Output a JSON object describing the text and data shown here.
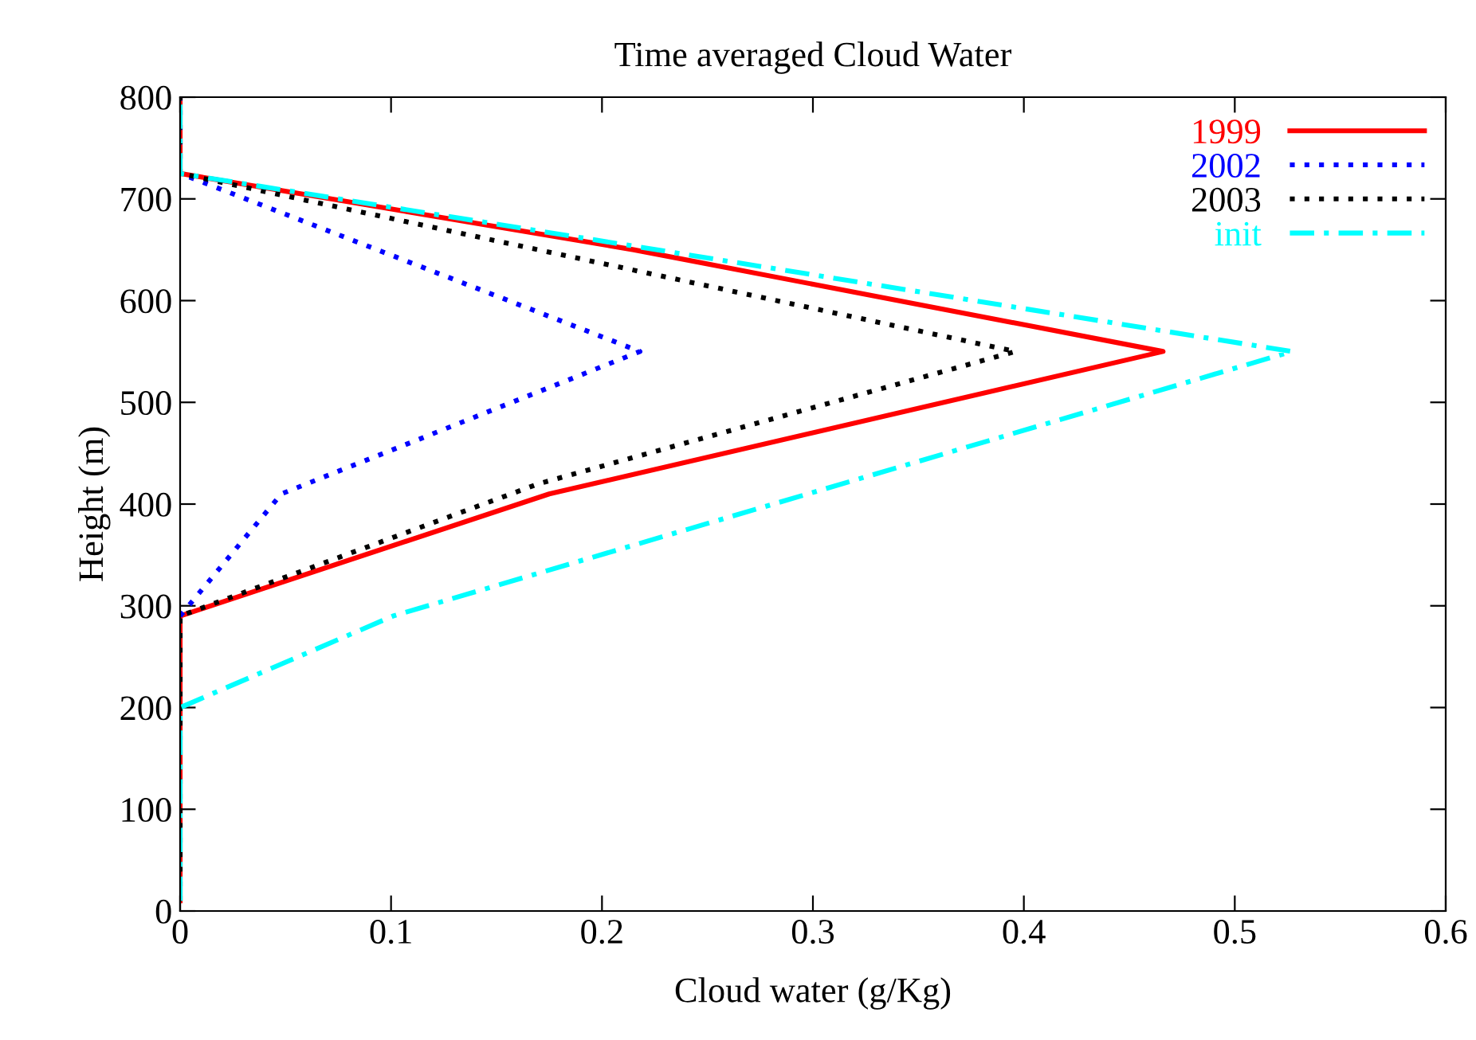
{
  "chart_data": {
    "type": "line",
    "title": "Time averaged Cloud Water",
    "xlabel": "Cloud water (g/Kg)",
    "ylabel": "Height (m)",
    "xlim": [
      0,
      0.6
    ],
    "xticks": [
      0,
      0.1,
      0.2,
      0.3,
      0.4,
      0.5,
      0.6
    ],
    "ylim": [
      0,
      800
    ],
    "yticks": [
      0,
      100,
      200,
      300,
      400,
      500,
      600,
      700,
      800
    ],
    "grid": false,
    "legend": "top right",
    "marker": "none",
    "series": [
      {
        "name": "1999",
        "color": "#ff0000",
        "line_style": "solid",
        "x": [
          0,
          0,
          0.175,
          0.466,
          0.215,
          0,
          0
        ],
        "values": [
          10,
          290,
          410,
          550,
          650,
          725,
          800
        ]
      },
      {
        "name": "2002",
        "color": "#0000ff",
        "line_style": "dotted",
        "x": [
          0,
          0.048,
          0.218,
          0,
          0
        ],
        "values": [
          290,
          410,
          550,
          725,
          800
        ]
      },
      {
        "name": "2003",
        "color": "#000000",
        "line_style": "dotted",
        "x": [
          0,
          0,
          0.17,
          0.396,
          0,
          0
        ],
        "values": [
          10,
          290,
          420,
          550,
          725,
          800
        ]
      },
      {
        "name": "init",
        "color": "#00ffff",
        "line_style": "dashdot",
        "x": [
          0,
          0,
          0.101,
          0.527,
          0,
          0
        ],
        "values": [
          10,
          200,
          290,
          550,
          725,
          800
        ]
      }
    ]
  }
}
